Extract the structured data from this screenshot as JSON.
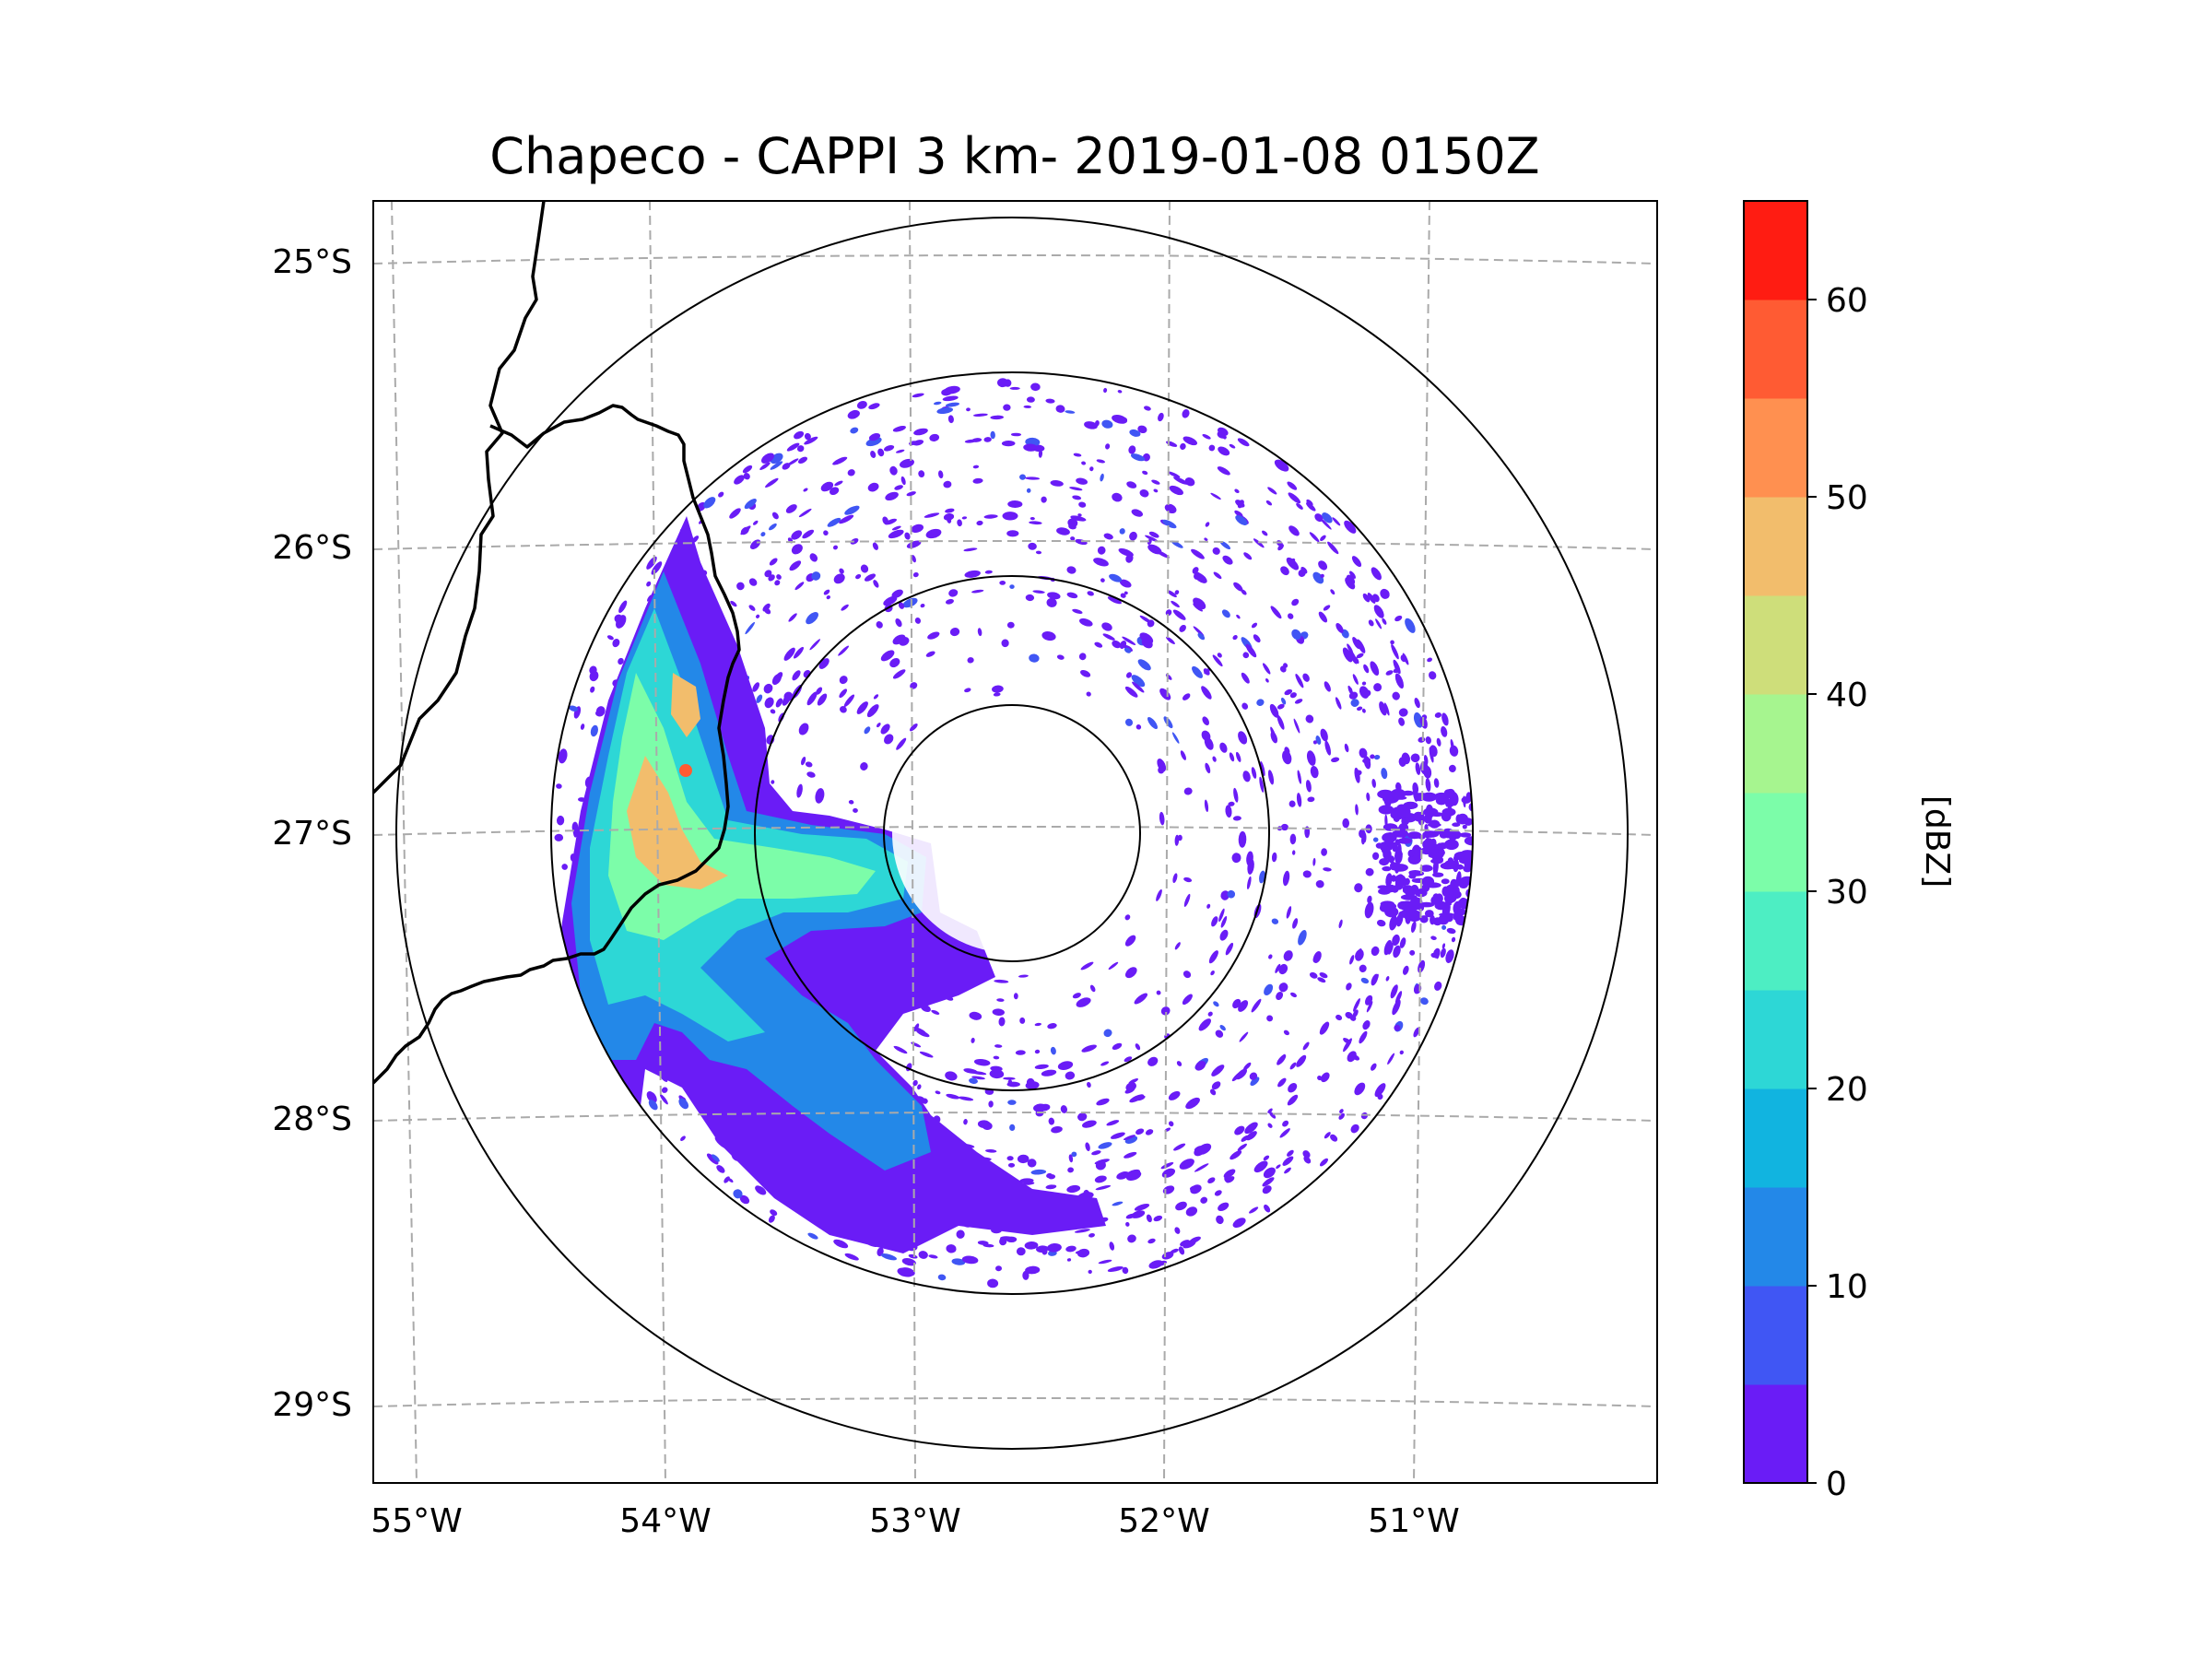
{
  "title": "Chapeco - CAPPI 3 km- 2019-01-08 0150Z",
  "map": {
    "lat_ticks": [
      "25°S",
      "26°S",
      "27°S",
      "28°S",
      "29°S"
    ],
    "lon_ticks": [
      "55°W",
      "54°W",
      "53°W",
      "52°W",
      "51°W"
    ],
    "lon_values": [
      -55,
      -54,
      -53,
      -52,
      -51
    ],
    "lat_values": [
      -25,
      -26,
      -27,
      -28,
      -29
    ],
    "extent": {
      "lon_min": -55.18,
      "lon_max": -50.05,
      "lat_min": -29.28,
      "lat_max": -24.78
    },
    "radar_site": {
      "name": "Chapeco",
      "lon": -52.6,
      "lat": -27.03
    },
    "range_rings_km": [
      50,
      100,
      200,
      240
    ],
    "data_range_km": 180
  },
  "colorbar": {
    "label": "[dBZ]",
    "tick_labels": [
      "0",
      "10",
      "20",
      "30",
      "40",
      "50",
      "60"
    ],
    "tick_values": [
      0,
      10,
      20,
      30,
      40,
      50,
      60
    ],
    "range": [
      0,
      65
    ],
    "colors": [
      "#6a1cf6",
      "#4056f4",
      "#2388e8",
      "#11b4e0",
      "#2dd7d6",
      "#4deec3",
      "#7cfda9",
      "#a6f58f",
      "#cede7a",
      "#f2bd6c",
      "#ff9050",
      "#ff5b33",
      "#ff1c12"
    ]
  },
  "chart_data": {
    "type": "heatmap",
    "title": "Chapeco - CAPPI 3 km- 2019-01-08 0150Z",
    "xlabel": "",
    "ylabel": "",
    "variable": "reflectivity",
    "units": "dBZ",
    "vmin": 0,
    "vmax": 65,
    "colorbar_label": "[dBZ]"
  }
}
